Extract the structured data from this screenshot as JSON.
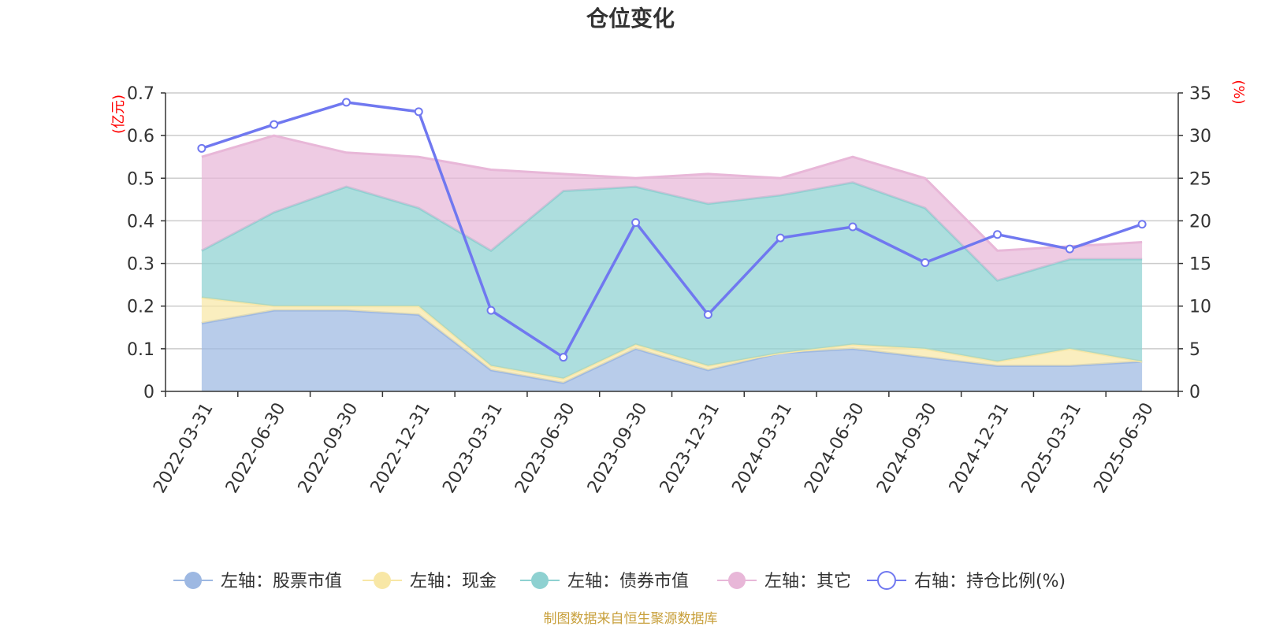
{
  "chart_data": {
    "type": "area",
    "title": "仓位变化",
    "left_axis_unit": "(亿元)",
    "right_axis_unit": "(%)",
    "categories": [
      "2022-03-31",
      "2022-06-30",
      "2022-09-30",
      "2022-12-31",
      "2023-03-31",
      "2023-06-30",
      "2023-09-30",
      "2023-12-31",
      "2024-03-31",
      "2024-06-30",
      "2024-09-30",
      "2024-12-31",
      "2025-03-31",
      "2025-06-30"
    ],
    "left_ylim": [
      0,
      0.7
    ],
    "left_ticks": [
      "0",
      "0.1",
      "0.2",
      "0.3",
      "0.4",
      "0.5",
      "0.6",
      "0.7"
    ],
    "right_ylim": [
      0,
      35
    ],
    "right_ticks": [
      "0",
      "5",
      "10",
      "15",
      "20",
      "25",
      "30",
      "35"
    ],
    "stacked": true,
    "series": [
      {
        "name": "左轴：股票市值",
        "axis": "left",
        "kind": "area",
        "color": "#9db8e2",
        "values": [
          0.16,
          0.19,
          0.19,
          0.18,
          0.05,
          0.02,
          0.1,
          0.05,
          0.09,
          0.1,
          0.08,
          0.06,
          0.06,
          0.07
        ]
      },
      {
        "name": "左轴：现金",
        "axis": "left",
        "kind": "area",
        "color": "#f8e7a6",
        "values": [
          0.06,
          0.01,
          0.01,
          0.02,
          0.01,
          0.01,
          0.01,
          0.01,
          0.0,
          0.01,
          0.02,
          0.01,
          0.04,
          0.0
        ]
      },
      {
        "name": "左轴：债券市值",
        "axis": "left",
        "kind": "area",
        "color": "#8ed1d1",
        "values": [
          0.11,
          0.22,
          0.28,
          0.23,
          0.27,
          0.44,
          0.37,
          0.38,
          0.37,
          0.38,
          0.33,
          0.19,
          0.21,
          0.24
        ]
      },
      {
        "name": "左轴：其它",
        "axis": "left",
        "kind": "area",
        "color": "#e8b7d8",
        "values": [
          0.22,
          0.18,
          0.08,
          0.12,
          0.19,
          0.04,
          0.02,
          0.07,
          0.04,
          0.06,
          0.07,
          0.07,
          0.03,
          0.04
        ]
      },
      {
        "name": "右轴：持仓比例(%)",
        "axis": "right",
        "kind": "line",
        "color": "#7078f0",
        "values": [
          28.5,
          31.3,
          33.9,
          32.8,
          9.5,
          4.0,
          19.8,
          9.0,
          18.0,
          19.3,
          15.1,
          18.4,
          16.7,
          19.6
        ]
      }
    ],
    "legend_position": "bottom",
    "grid": true
  },
  "source_text": "制图数据来自恒生聚源数据库"
}
